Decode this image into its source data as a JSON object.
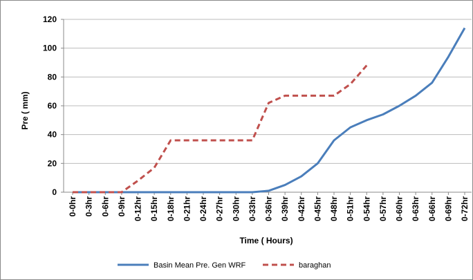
{
  "chart_data": {
    "type": "line",
    "y_label": "Pre ( mm)",
    "x_label": "Time ( Hours)",
    "categories": [
      "0-0hr",
      "0-3hr",
      "0-6hr",
      "0-9hr",
      "0-12hr",
      "0-15hr",
      "0-18hr",
      "0-21hr",
      "0-24hr",
      "0-27hr",
      "0-30hr",
      "0-33hr",
      "0-36hr",
      "0-39hr",
      "0-42hr",
      "0-45hr",
      "0-48hr",
      "0-51hr",
      "0-54hr",
      "0-57hr",
      "0-60hr",
      "0-63hr",
      "0-66hr",
      "0-69hr",
      "0-72hr"
    ],
    "series": [
      {
        "name": "Basin Mean Pre. Gen WRF",
        "color": "#4a7ebb",
        "dashed": false,
        "values": [
          0,
          0,
          0,
          0,
          0,
          0,
          0,
          0,
          0,
          0,
          0,
          0,
          1,
          5,
          11,
          20,
          36,
          45,
          50,
          54,
          60,
          67,
          76,
          94,
          114
        ]
      },
      {
        "name": "baraghan",
        "color": "#c0504d",
        "dashed": true,
        "values": [
          0,
          0,
          0,
          0,
          8,
          17,
          36,
          36,
          36,
          36,
          36,
          36,
          62,
          67,
          67,
          67,
          67,
          75,
          88,
          null,
          null,
          null,
          null,
          null,
          null
        ]
      }
    ],
    "ylim": [
      0,
      120
    ],
    "yticks": [
      0,
      20,
      40,
      60,
      80,
      100,
      120
    ],
    "grid": true
  }
}
